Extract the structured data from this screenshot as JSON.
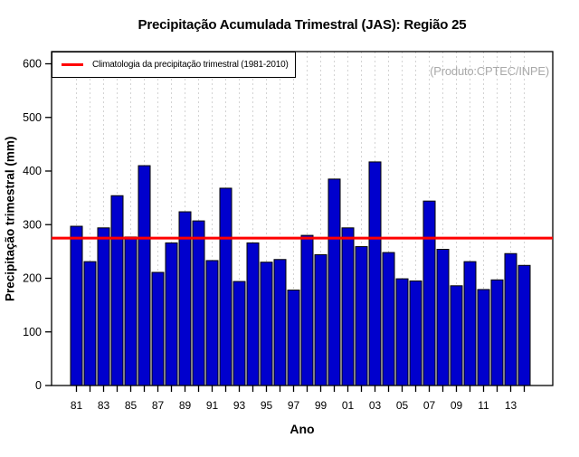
{
  "title": "Precipitação Acumulada Trimestral (JAS): Região 25",
  "watermark": "(Produto:CPTEC/INPE)",
  "legend": {
    "label": "Climatologia da precipitação trimestral (1981-2010)"
  },
  "axes": {
    "xlabel": "Ano",
    "ylabel": "Precipitação trimestral (mm)"
  },
  "colors": {
    "bar_fill": "#0000CD",
    "bar_stroke": "#000000",
    "climatology_line": "#FF0000",
    "grid_line": "#D3D3D3",
    "watermark_text": "#A9A9A9",
    "axis": "#000000",
    "background": "#FFFFFF"
  },
  "chart_data": {
    "type": "bar",
    "title": "Precipitação Acumulada Trimestral (JAS): Região 25",
    "xlabel": "Ano",
    "ylabel": "Precipitação trimestral (mm)",
    "ylim": [
      0,
      600
    ],
    "yticks": [
      0,
      100,
      200,
      300,
      400,
      500,
      600
    ],
    "grid": "vertical-dashed-per-year",
    "legend_position": "top-left",
    "legend_label": "Climatologia da precipitação trimestral (1981-2010)",
    "climatology_value": 275,
    "years": [
      1981,
      1982,
      1983,
      1984,
      1985,
      1986,
      1987,
      1988,
      1989,
      1990,
      1991,
      1992,
      1993,
      1994,
      1995,
      1996,
      1997,
      1998,
      1999,
      2000,
      2001,
      2002,
      2003,
      2004,
      2005,
      2006,
      2007,
      2008,
      2009,
      2010,
      2011,
      2012,
      2013,
      2014
    ],
    "xtick_labels": [
      "81",
      "83",
      "85",
      "87",
      "89",
      "91",
      "93",
      "95",
      "97",
      "99",
      "01",
      "03",
      "05",
      "07",
      "09",
      "11",
      "13"
    ],
    "values": [
      297,
      231,
      294,
      354,
      277,
      410,
      211,
      266,
      324,
      307,
      233,
      368,
      194,
      266,
      230,
      235,
      178,
      280,
      244,
      385,
      294,
      259,
      417,
      248,
      199,
      195,
      344,
      254,
      186,
      231,
      179,
      197,
      246,
      224
    ]
  }
}
